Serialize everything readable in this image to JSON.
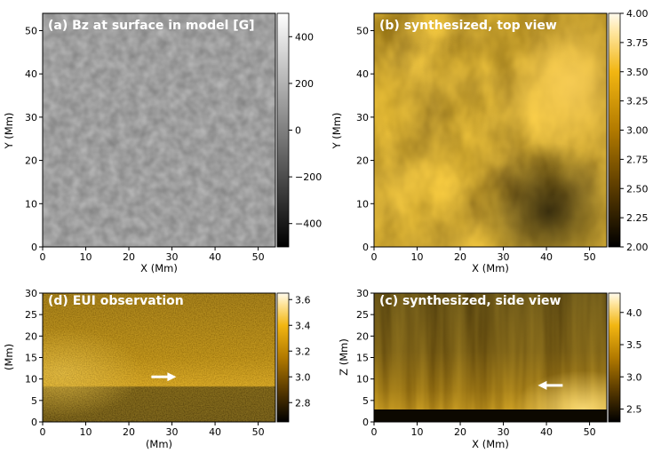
{
  "chart_data": [
    {
      "type": "heatmap",
      "title": "(a) Bz at surface in model [G]",
      "xlabel": "X (Mm)",
      "ylabel": "Y (Mm)",
      "xlim": [
        0,
        54
      ],
      "ylim": [
        0,
        54
      ],
      "xticks": [
        0,
        10,
        20,
        30,
        40,
        50
      ],
      "yticks": [
        0,
        10,
        20,
        30,
        40,
        50
      ],
      "colormap": "gray",
      "colorbar_range": [
        -500,
        500
      ],
      "colorbar_ticks": [
        400,
        200,
        0,
        -200,
        -400
      ],
      "colorbar_tick_labels": [
        "400",
        "200",
        "0",
        "−200",
        "−400"
      ]
    },
    {
      "type": "heatmap",
      "title": "(b) synthesized, top view",
      "xlabel": "X (Mm)",
      "ylabel": "Y (Mm)",
      "xlim": [
        0,
        54
      ],
      "ylim": [
        0,
        54
      ],
      "xticks": [
        0,
        10,
        20,
        30,
        40,
        50
      ],
      "yticks": [
        0,
        10,
        20,
        30,
        40,
        50
      ],
      "colormap": "gold",
      "colorbar_range": [
        2.0,
        4.0
      ],
      "colorbar_ticks": [
        4.0,
        3.75,
        3.5,
        3.25,
        3.0,
        2.75,
        2.5,
        2.25,
        2.0
      ],
      "colorbar_tick_labels": [
        "4.00",
        "3.75",
        "3.50",
        "3.25",
        "3.00",
        "2.75",
        "2.50",
        "2.25",
        "2.00"
      ]
    },
    {
      "type": "heatmap",
      "title": "(d) EUI observation",
      "xlabel": "(Mm)",
      "ylabel": "(Mm)",
      "xlim": [
        0,
        54
      ],
      "ylim": [
        0,
        30
      ],
      "xticks": [
        0,
        10,
        20,
        30,
        40,
        50
      ],
      "yticks": [
        0,
        5,
        10,
        15,
        20,
        25,
        30
      ],
      "colormap": "gold",
      "colorbar_range": [
        2.65,
        3.65
      ],
      "colorbar_ticks": [
        3.6,
        3.4,
        3.2,
        3.0,
        2.8
      ],
      "colorbar_tick_labels": [
        "3.6",
        "3.4",
        "3.2",
        "3.0",
        "2.8"
      ],
      "annotation": {
        "type": "arrow",
        "pointing": "right",
        "x": 31,
        "y": 10.5
      }
    },
    {
      "type": "heatmap",
      "title": "(c) synthesized, side view",
      "xlabel": "X (Mm)",
      "ylabel": "Z (Mm)",
      "xlim": [
        0,
        54
      ],
      "ylim": [
        0,
        30
      ],
      "xticks": [
        0,
        10,
        20,
        30,
        40,
        50
      ],
      "yticks": [
        0,
        5,
        10,
        15,
        20,
        25,
        30
      ],
      "colormap": "gold",
      "colorbar_range": [
        2.3,
        4.3
      ],
      "colorbar_ticks": [
        4.0,
        3.5,
        3.0,
        2.5
      ],
      "colorbar_tick_labels": [
        "4.0",
        "3.5",
        "3.0",
        "2.5"
      ],
      "annotation": {
        "type": "arrow",
        "pointing": "left",
        "x": 38,
        "y": 8.5
      }
    }
  ]
}
